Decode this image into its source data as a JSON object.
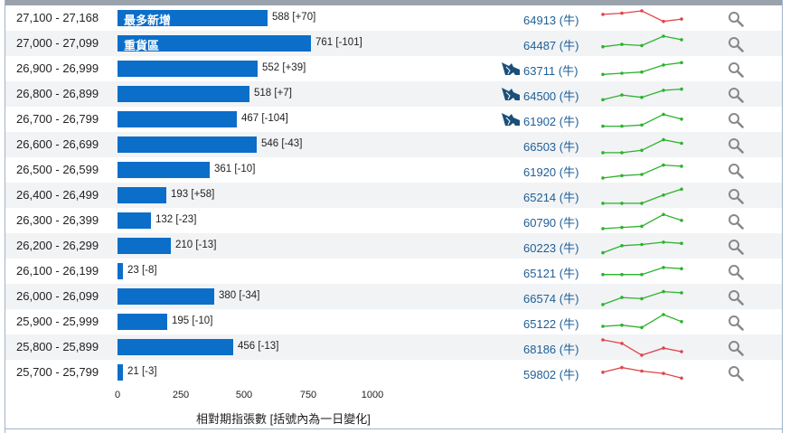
{
  "table": {
    "axis": {
      "ticks": [
        "0",
        "250",
        "500",
        "750",
        "1000"
      ],
      "title": "相對期指張數 [括號內為一日變化]"
    },
    "unit_suffix": "(牛)",
    "rows": [
      {
        "range": "27,100 - 27,168",
        "tag": "最多新增",
        "count": 588,
        "label": "588 [+70]",
        "volume": "64913",
        "bull_icon": false,
        "trend": "down",
        "spark": [
          3,
          2,
          0,
          9,
          7
        ]
      },
      {
        "range": "27,000 - 27,099",
        "tag": "重貨區",
        "count": 761,
        "label": "761 [-101]",
        "volume": "64487",
        "bull_icon": false,
        "trend": "up",
        "spark": [
          9,
          7,
          8,
          0,
          3
        ]
      },
      {
        "range": "26,900 - 26,999",
        "tag": "",
        "count": 552,
        "label": "552 [+39]",
        "volume": "63711",
        "bull_icon": true,
        "trend": "up",
        "spark": [
          11,
          10,
          9,
          3,
          1
        ]
      },
      {
        "range": "26,800 - 26,899",
        "tag": "",
        "count": 518,
        "label": "518 [+7]",
        "volume": "64500",
        "bull_icon": true,
        "trend": "up",
        "spark": [
          11,
          7,
          9,
          3,
          2
        ]
      },
      {
        "range": "26,700 - 26,799",
        "tag": "",
        "count": 467,
        "label": "467 [-104]",
        "volume": "61902",
        "bull_icon": true,
        "trend": "up",
        "spark": [
          12,
          12,
          11,
          2,
          6
        ]
      },
      {
        "range": "26,600 - 26,699",
        "tag": "",
        "count": 546,
        "label": "546 [-43]",
        "volume": "66503",
        "bull_icon": false,
        "trend": "up",
        "spark": [
          13,
          13,
          11,
          2,
          5
        ]
      },
      {
        "range": "26,500 - 26,599",
        "tag": "",
        "count": 361,
        "label": "361 [-10]",
        "volume": "61920",
        "bull_icon": false,
        "trend": "up",
        "spark": [
          13,
          11,
          10,
          2,
          3
        ]
      },
      {
        "range": "26,400 - 26,499",
        "tag": "",
        "count": 193,
        "label": "193 [+58]",
        "volume": "65214",
        "bull_icon": false,
        "trend": "up",
        "spark": [
          13,
          13,
          13,
          6,
          1
        ]
      },
      {
        "range": "26,300 - 26,399",
        "tag": "",
        "count": 132,
        "label": "132 [-23]",
        "volume": "60790",
        "bull_icon": false,
        "trend": "up",
        "spark": [
          13,
          12,
          11,
          1,
          6
        ]
      },
      {
        "range": "26,200 - 26,299",
        "tag": "",
        "count": 210,
        "label": "210 [-13]",
        "volume": "60223",
        "bull_icon": false,
        "trend": "up",
        "spark": [
          12,
          6,
          5,
          3,
          4
        ]
      },
      {
        "range": "26,100 - 26,199",
        "tag": "",
        "count": 23,
        "label": "23 [-8]",
        "volume": "65121",
        "bull_icon": false,
        "trend": "up",
        "spark": [
          9,
          9,
          9,
          3,
          4
        ]
      },
      {
        "range": "26,000 - 26,099",
        "tag": "",
        "count": 380,
        "label": "380 [-34]",
        "volume": "66574",
        "bull_icon": false,
        "trend": "up",
        "spark": [
          13,
          7,
          8,
          2,
          3
        ]
      },
      {
        "range": "25,900 - 25,999",
        "tag": "",
        "count": 195,
        "label": "195 [-10]",
        "volume": "65122",
        "bull_icon": false,
        "trend": "up",
        "spark": [
          10,
          9,
          11,
          0,
          6
        ]
      },
      {
        "range": "25,800 - 25,899",
        "tag": "",
        "count": 456,
        "label": "456 [-13]",
        "volume": "68186",
        "bull_icon": false,
        "trend": "down",
        "spark": [
          0,
          3,
          13,
          7,
          10
        ]
      },
      {
        "range": "25,700 - 25,799",
        "tag": "",
        "count": 21,
        "label": "21 [-3]",
        "volume": "59802",
        "bull_icon": false,
        "trend": "down",
        "spark": [
          6,
          2,
          5,
          7,
          11
        ]
      }
    ]
  },
  "colors": {
    "bar": "#0b6ec9",
    "volume_text": "#1f5f96",
    "spark_up": "#2db22d",
    "spark_down": "#e0454a",
    "stripe": "#f1f3f5",
    "icon": "#1a4f7a"
  },
  "icons": {
    "bull": "bull-icon",
    "search": "magnifier-icon"
  }
}
